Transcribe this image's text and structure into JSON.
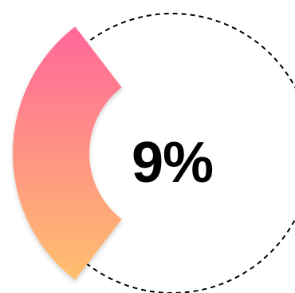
{
  "progress": {
    "label": "9%",
    "value_fraction": 0.09,
    "gradient_start_color": "#ff6b98",
    "gradient_end_color": "#ffc46b",
    "ring_outline_color": "#000000",
    "label_color": "#000000"
  }
}
